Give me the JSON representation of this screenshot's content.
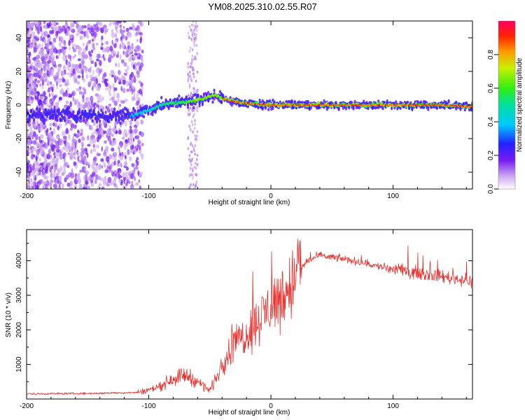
{
  "figure": {
    "title": "YM08.2025.310.02.55.R07"
  },
  "chart_data": [
    {
      "type": "heatmap",
      "title": "YM08.2025.310.02.55.R07",
      "xlabel": "Height of straight line (km)",
      "ylabel": "Frequency (Hz)",
      "xlim": [
        -200,
        165
      ],
      "ylim": [
        -50,
        50
      ],
      "xticks": [
        -200,
        -100,
        0,
        100
      ],
      "yticks": [
        -40,
        -20,
        0,
        20,
        40
      ],
      "doppler_ridge": {
        "x": [
          -115,
          -100,
          -90,
          -80,
          -70,
          -60,
          -50,
          -45,
          -40,
          -30,
          -20,
          0,
          20,
          60,
          100,
          140,
          165
        ],
        "y": [
          -7,
          -3,
          0,
          1,
          2,
          3,
          5,
          6,
          4,
          2,
          1,
          0,
          0,
          0,
          0,
          0,
          -1
        ]
      },
      "colorbar": {
        "label": "Normalized spectral amplitude",
        "range": [
          0.0,
          1.0
        ],
        "ticks": [
          0.0,
          0.2,
          0.4,
          0.6,
          0.8
        ]
      }
    },
    {
      "type": "line",
      "xlabel": "Height of straight line (km)",
      "ylabel": "SNR (10 * v/v)",
      "xlim": [
        -200,
        165
      ],
      "ylim": [
        0,
        4900
      ],
      "xticks": [
        -200,
        -100,
        0,
        100
      ],
      "yticks": [
        1000,
        2000,
        3000,
        4000
      ],
      "color": "#e8312e",
      "series": [
        {
          "name": "SNR",
          "x": [
            -200,
            -150,
            -110,
            -100,
            -90,
            -80,
            -70,
            -60,
            -50,
            -45,
            -40,
            -30,
            -20,
            -10,
            0,
            10,
            20,
            25,
            30,
            40,
            60,
            80,
            100,
            120,
            140,
            165
          ],
          "y": [
            150,
            160,
            190,
            260,
            380,
            600,
            700,
            500,
            250,
            600,
            1000,
            1600,
            1900,
            2300,
            2700,
            3000,
            3500,
            3800,
            4000,
            4150,
            4050,
            3900,
            3750,
            3650,
            3550,
            3400
          ]
        }
      ]
    }
  ]
}
